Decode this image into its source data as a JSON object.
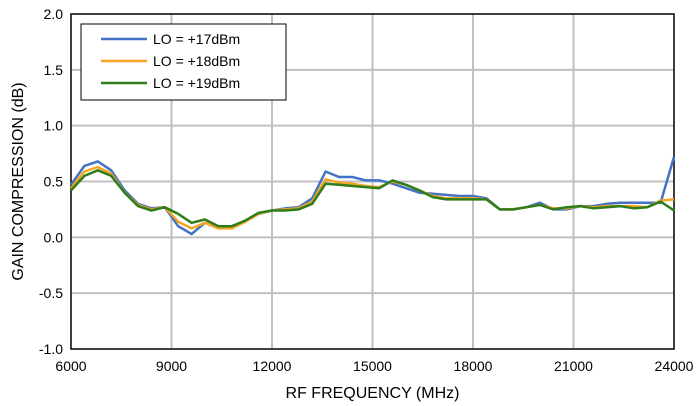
{
  "chart_data": {
    "type": "line",
    "title": "",
    "xlabel": "RF FREQUENCY (MHz)",
    "ylabel": "GAIN COMPRESSION (dB)",
    "xlim": [
      6000,
      24000
    ],
    "ylim": [
      -1.0,
      2.0
    ],
    "xticks": [
      6000,
      9000,
      12000,
      15000,
      18000,
      21000,
      24000
    ],
    "yticks": [
      -1.0,
      -0.5,
      0.0,
      0.5,
      1.0,
      1.5,
      2.0
    ],
    "xtick_labels": [
      "6000",
      "9000",
      "12000",
      "15000",
      "18000",
      "21000",
      "24000"
    ],
    "ytick_labels": [
      "-1.0",
      "-0.5",
      "0.0",
      "0.5",
      "1.0",
      "1.5",
      "2.0"
    ],
    "grid": true,
    "legend_position": "top-left",
    "series": [
      {
        "name": "LO = +17dBm",
        "color": "#4472C4",
        "x": [
          6000,
          6400,
          6800,
          7200,
          7600,
          8000,
          8400,
          8800,
          9200,
          9600,
          10000,
          10400,
          10800,
          11200,
          11600,
          12000,
          12400,
          12800,
          13200,
          13600,
          14000,
          14400,
          14800,
          15200,
          15600,
          16000,
          16400,
          16800,
          17200,
          17600,
          18000,
          18400,
          18800,
          19200,
          19600,
          20000,
          20400,
          20800,
          21200,
          21600,
          22000,
          22400,
          22800,
          23200,
          23600,
          24000
        ],
        "y": [
          0.47,
          0.64,
          0.68,
          0.6,
          0.42,
          0.3,
          0.26,
          0.27,
          0.1,
          0.03,
          0.13,
          0.09,
          0.09,
          0.15,
          0.21,
          0.24,
          0.26,
          0.27,
          0.35,
          0.59,
          0.54,
          0.54,
          0.51,
          0.51,
          0.48,
          0.44,
          0.4,
          0.39,
          0.38,
          0.37,
          0.37,
          0.35,
          0.25,
          0.25,
          0.27,
          0.31,
          0.25,
          0.25,
          0.28,
          0.28,
          0.3,
          0.31,
          0.31,
          0.31,
          0.31,
          0.72
        ]
      },
      {
        "name": "LO = +18dBm",
        "color": "#F5A623",
        "x": [
          6000,
          6400,
          6800,
          7200,
          7600,
          8000,
          8400,
          8800,
          9200,
          9600,
          10000,
          10400,
          10800,
          11200,
          11600,
          12000,
          12400,
          12800,
          13200,
          13600,
          14000,
          14400,
          14800,
          15200,
          15600,
          16000,
          16400,
          16800,
          17200,
          17600,
          18000,
          18400,
          18800,
          19200,
          19600,
          20000,
          20400,
          20800,
          21200,
          21600,
          22000,
          22400,
          22800,
          23200,
          23600,
          24000
        ],
        "y": [
          0.44,
          0.59,
          0.63,
          0.57,
          0.4,
          0.29,
          0.25,
          0.27,
          0.14,
          0.08,
          0.13,
          0.08,
          0.08,
          0.14,
          0.21,
          0.24,
          0.25,
          0.26,
          0.32,
          0.52,
          0.49,
          0.48,
          0.46,
          0.45,
          0.5,
          0.47,
          0.42,
          0.37,
          0.35,
          0.35,
          0.35,
          0.34,
          0.25,
          0.25,
          0.27,
          0.29,
          0.26,
          0.26,
          0.28,
          0.27,
          0.28,
          0.28,
          0.28,
          0.27,
          0.33,
          0.34
        ]
      },
      {
        "name": "LO = +19dBm",
        "color": "#2E7D1A",
        "x": [
          6000,
          6400,
          6800,
          7200,
          7600,
          8000,
          8400,
          8800,
          9200,
          9600,
          10000,
          10400,
          10800,
          11200,
          11600,
          12000,
          12400,
          12800,
          13200,
          13600,
          14000,
          14400,
          14800,
          15200,
          15600,
          16000,
          16400,
          16800,
          17200,
          17600,
          18000,
          18400,
          18800,
          19200,
          19600,
          20000,
          20400,
          20800,
          21200,
          21600,
          22000,
          22400,
          22800,
          23200,
          23600,
          24000
        ],
        "y": [
          0.42,
          0.55,
          0.6,
          0.55,
          0.4,
          0.28,
          0.24,
          0.27,
          0.21,
          0.13,
          0.16,
          0.1,
          0.1,
          0.15,
          0.22,
          0.24,
          0.24,
          0.25,
          0.3,
          0.48,
          0.47,
          0.46,
          0.45,
          0.44,
          0.51,
          0.47,
          0.42,
          0.36,
          0.34,
          0.34,
          0.34,
          0.34,
          0.25,
          0.25,
          0.27,
          0.29,
          0.25,
          0.27,
          0.28,
          0.26,
          0.27,
          0.28,
          0.26,
          0.27,
          0.32,
          0.24
        ]
      }
    ]
  }
}
